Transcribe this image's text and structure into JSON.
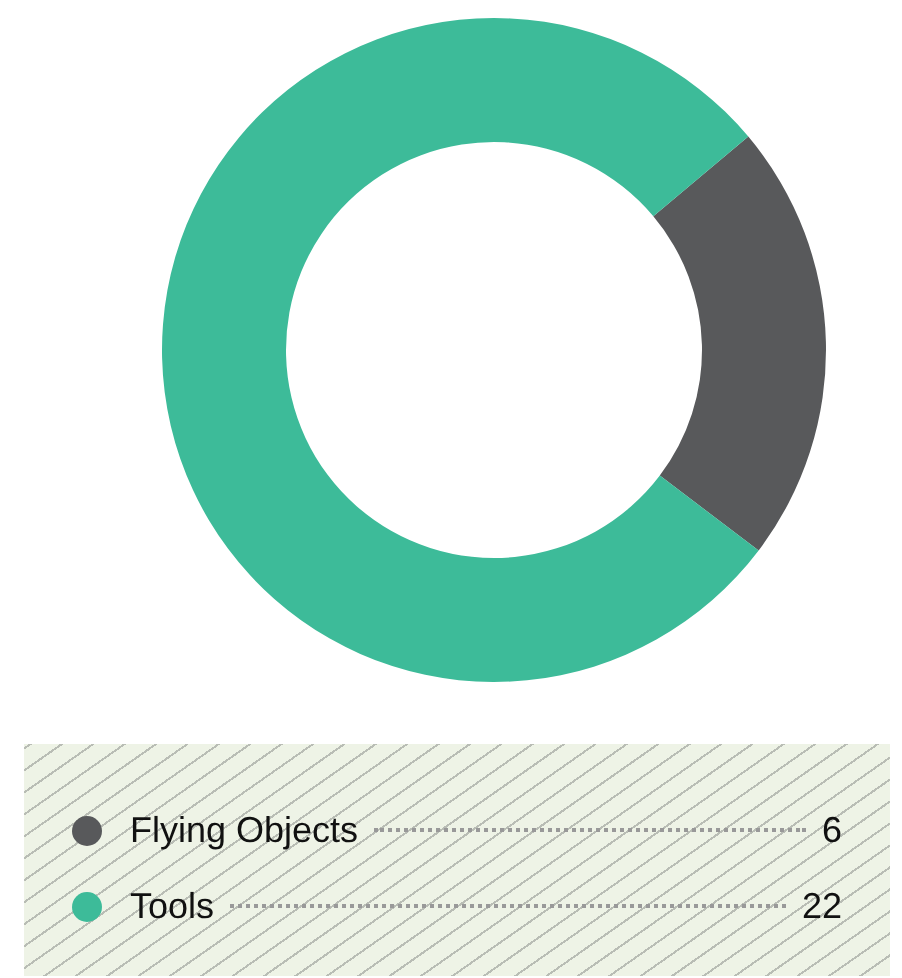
{
  "chart_data": {
    "type": "donut",
    "categories": [
      "Flying Objects",
      "Tools"
    ],
    "values": [
      6,
      22
    ],
    "colors": [
      "#58595b",
      "#3dbb99"
    ],
    "legend": "bottom",
    "data_labels": true
  }
}
